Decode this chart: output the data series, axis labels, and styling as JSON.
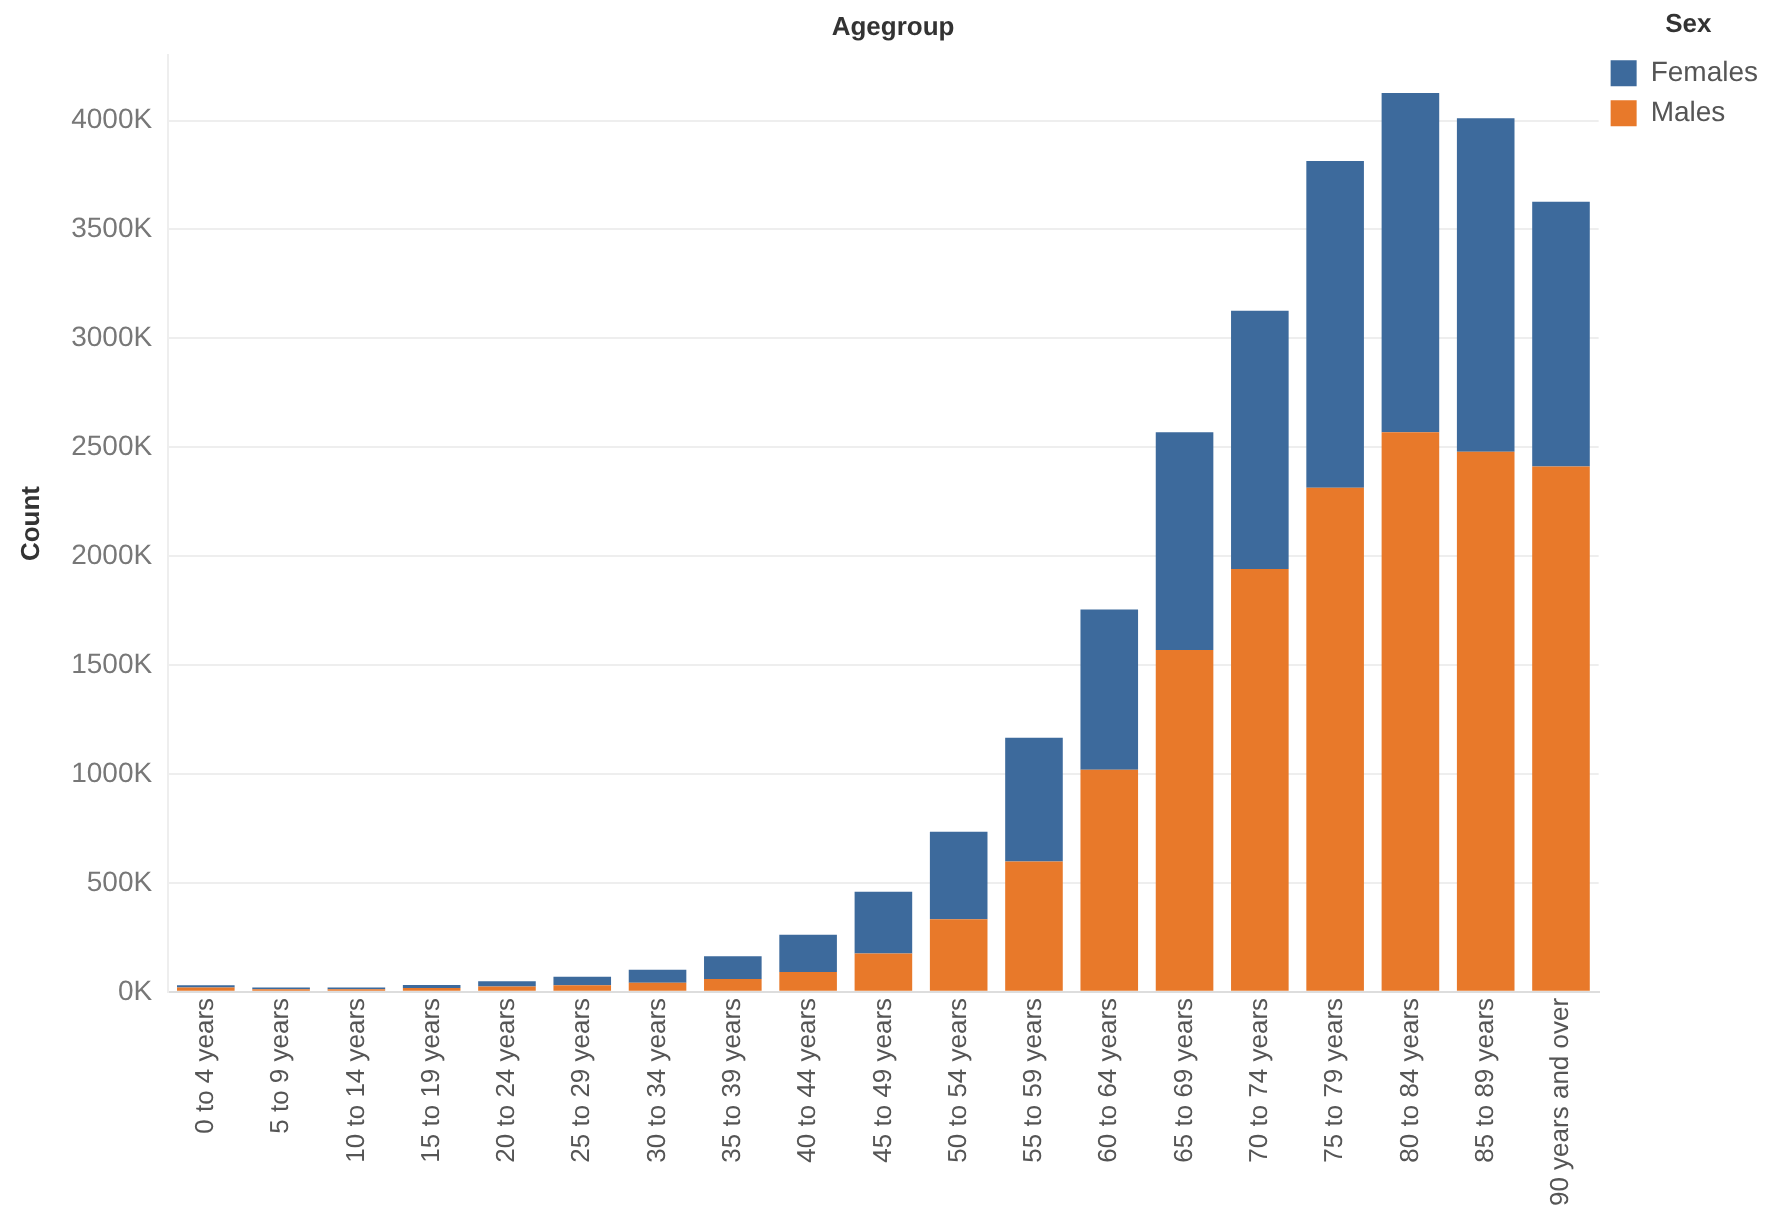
{
  "chart_data": {
    "type": "bar",
    "stacked": true,
    "xlabel": "Agegroup",
    "ylabel": "Count",
    "legend_title": "Sex",
    "legend": "top right",
    "grid": "y",
    "categories": [
      "0 to 4 years",
      "5 to 9 years",
      "10 to 14 years",
      "15 to 19 years",
      "20 to 24 years",
      "25 to 29 years",
      "30 to 34 years",
      "35 to 39 years",
      "40 to 44 years",
      "45 to 49 years",
      "50 to 54 years",
      "55 to 59 years",
      "60 to 64 years",
      "65 to 69 years",
      "70 to 74 years",
      "75 to 79 years",
      "80 to 84 years",
      "85 to 89 years",
      "90 years and over"
    ],
    "series": [
      {
        "name": "Males",
        "color": "#e8792a",
        "values": [
          20,
          12,
          12,
          18,
          25,
          30,
          42,
          59,
          91,
          176,
          333,
          598,
          1020,
          1569,
          1941,
          2314,
          2569,
          2480,
          2412
        ]
      },
      {
        "name": "Females",
        "color": "#3d6a9c",
        "values": [
          10,
          8,
          8,
          14,
          24,
          39,
          59,
          105,
          171,
          284,
          402,
          569,
          735,
          1000,
          1186,
          1500,
          1558,
          1530,
          1215
        ]
      }
    ],
    "ylim": [
      0,
      4300
    ],
    "yticks": [
      {
        "value": 0,
        "label": "0K"
      },
      {
        "value": 500,
        "label": "500K"
      },
      {
        "value": 1000,
        "label": "1000K"
      },
      {
        "value": 1500,
        "label": "1500K"
      },
      {
        "value": 2000,
        "label": "2000K"
      },
      {
        "value": 2500,
        "label": "2500K"
      },
      {
        "value": 3000,
        "label": "3000K"
      },
      {
        "value": 3500,
        "label": "3500K"
      },
      {
        "value": 4000,
        "label": "4000K"
      }
    ]
  }
}
